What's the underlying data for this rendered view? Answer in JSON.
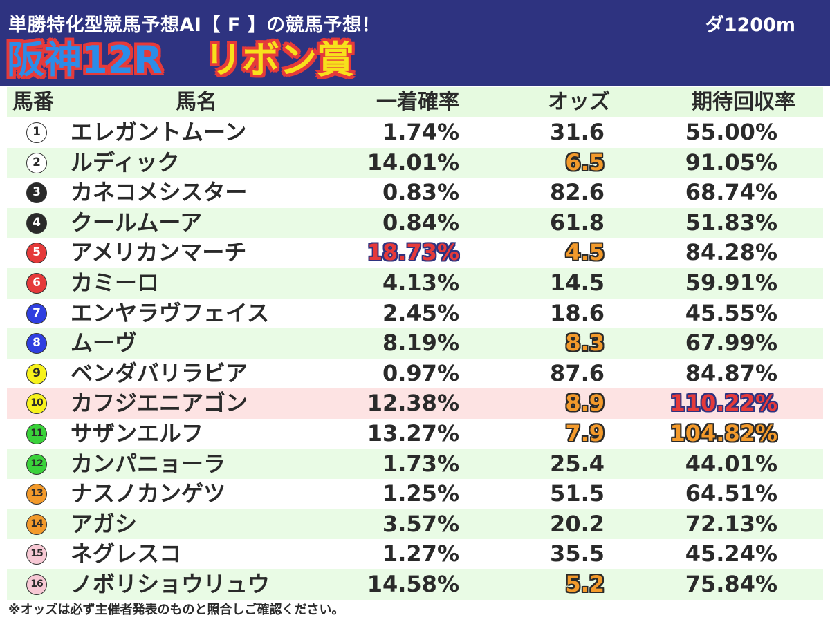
{
  "header": {
    "subtitle": "単勝特化型競馬予想AI【 F 】の競馬予想！",
    "distance": "ダ1200m",
    "track_race": "阪神12R",
    "race_name": "リボン賞"
  },
  "colors": {
    "header_bg": "#2e3380",
    "row_alt_green": "#e9fbe5",
    "row_highlight_pink": "#fde3e3",
    "accent_orange": "#f39a2b",
    "accent_red": "#e53a3a"
  },
  "table": {
    "columns": [
      "馬番",
      "馬名",
      "一着確率",
      "オッズ",
      "期待回収率"
    ],
    "rows": [
      {
        "num": "1",
        "name": "エレガントムーン",
        "prob": "1.74%",
        "odds": "31.6",
        "ret": "55.00%",
        "badge_bg": "#ffffff",
        "badge_fg": "#2a2a2a",
        "row": "odd",
        "prob_hl": "",
        "odds_hl": "",
        "ret_hl": ""
      },
      {
        "num": "2",
        "name": "ルディック",
        "prob": "14.01%",
        "odds": "6.5",
        "ret": "91.05%",
        "badge_bg": "#ffffff",
        "badge_fg": "#2a2a2a",
        "row": "even",
        "prob_hl": "",
        "odds_hl": "orange",
        "ret_hl": ""
      },
      {
        "num": "3",
        "name": "カネコメシスター",
        "prob": "0.83%",
        "odds": "82.6",
        "ret": "68.74%",
        "badge_bg": "#2a2a2a",
        "badge_fg": "#ffffff",
        "row": "odd",
        "prob_hl": "",
        "odds_hl": "",
        "ret_hl": ""
      },
      {
        "num": "4",
        "name": "クールムーア",
        "prob": "0.84%",
        "odds": "61.8",
        "ret": "51.83%",
        "badge_bg": "#2a2a2a",
        "badge_fg": "#ffffff",
        "row": "even",
        "prob_hl": "",
        "odds_hl": "",
        "ret_hl": ""
      },
      {
        "num": "5",
        "name": "アメリカンマーチ",
        "prob": "18.73%",
        "odds": "4.5",
        "ret": "84.28%",
        "badge_bg": "#e53a3a",
        "badge_fg": "#ffffff",
        "row": "odd",
        "prob_hl": "red",
        "odds_hl": "orange",
        "ret_hl": ""
      },
      {
        "num": "6",
        "name": "カミーロ",
        "prob": "4.13%",
        "odds": "14.5",
        "ret": "59.91%",
        "badge_bg": "#e53a3a",
        "badge_fg": "#ffffff",
        "row": "even",
        "prob_hl": "",
        "odds_hl": "",
        "ret_hl": ""
      },
      {
        "num": "7",
        "name": "エンヤラヴフェイス",
        "prob": "2.45%",
        "odds": "18.6",
        "ret": "45.55%",
        "badge_bg": "#2f3fe0",
        "badge_fg": "#ffffff",
        "row": "odd",
        "prob_hl": "",
        "odds_hl": "",
        "ret_hl": ""
      },
      {
        "num": "8",
        "name": "ムーヴ",
        "prob": "8.19%",
        "odds": "8.3",
        "ret": "67.99%",
        "badge_bg": "#2f3fe0",
        "badge_fg": "#ffffff",
        "row": "even",
        "prob_hl": "",
        "odds_hl": "orange",
        "ret_hl": ""
      },
      {
        "num": "9",
        "name": "ベンダバリラビア",
        "prob": "0.97%",
        "odds": "87.6",
        "ret": "84.87%",
        "badge_bg": "#f7f21c",
        "badge_fg": "#2a2a2a",
        "row": "odd",
        "prob_hl": "",
        "odds_hl": "",
        "ret_hl": ""
      },
      {
        "num": "10",
        "name": "カフジエニアゴン",
        "prob": "12.38%",
        "odds": "8.9",
        "ret": "110.22%",
        "badge_bg": "#f7f21c",
        "badge_fg": "#2a2a2a",
        "row": "hl",
        "prob_hl": "",
        "odds_hl": "orange",
        "ret_hl": "red"
      },
      {
        "num": "11",
        "name": "サザンエルフ",
        "prob": "13.27%",
        "odds": "7.9",
        "ret": "104.82%",
        "badge_bg": "#3ad23a",
        "badge_fg": "#2a2a2a",
        "row": "odd",
        "prob_hl": "",
        "odds_hl": "orange",
        "ret_hl": "orange"
      },
      {
        "num": "12",
        "name": "カンパニョーラ",
        "prob": "1.73%",
        "odds": "25.4",
        "ret": "44.01%",
        "badge_bg": "#3ad23a",
        "badge_fg": "#2a2a2a",
        "row": "even",
        "prob_hl": "",
        "odds_hl": "",
        "ret_hl": ""
      },
      {
        "num": "13",
        "name": "ナスノカンゲツ",
        "prob": "1.25%",
        "odds": "51.5",
        "ret": "64.51%",
        "badge_bg": "#f39a2b",
        "badge_fg": "#2a2a2a",
        "row": "odd",
        "prob_hl": "",
        "odds_hl": "",
        "ret_hl": ""
      },
      {
        "num": "14",
        "name": "アガシ",
        "prob": "3.57%",
        "odds": "20.2",
        "ret": "72.13%",
        "badge_bg": "#f39a2b",
        "badge_fg": "#2a2a2a",
        "row": "even",
        "prob_hl": "",
        "odds_hl": "",
        "ret_hl": ""
      },
      {
        "num": "15",
        "name": "ネグレスコ",
        "prob": "1.27%",
        "odds": "35.5",
        "ret": "45.24%",
        "badge_bg": "#f7c8d4",
        "badge_fg": "#2a2a2a",
        "row": "odd",
        "prob_hl": "",
        "odds_hl": "",
        "ret_hl": ""
      },
      {
        "num": "16",
        "name": "ノボリショウリュウ",
        "prob": "14.58%",
        "odds": "5.2",
        "ret": "75.84%",
        "badge_bg": "#f7c8d4",
        "badge_fg": "#2a2a2a",
        "row": "even",
        "prob_hl": "",
        "odds_hl": "orange",
        "ret_hl": ""
      }
    ]
  },
  "footnote": "※オッズは必ず主催者発表のものと照合しご確認ください。"
}
